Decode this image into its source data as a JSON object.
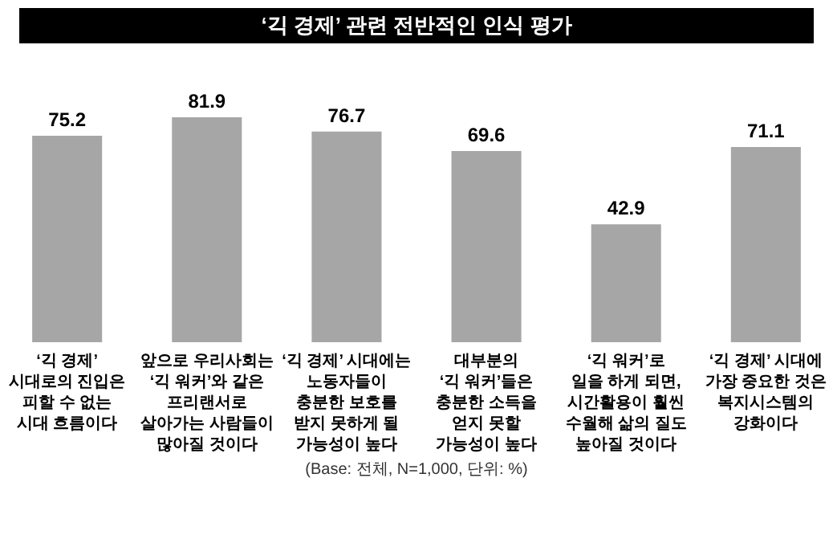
{
  "chart_data": {
    "type": "bar",
    "title": "‘긱 경제’ 관련 전반적인 인식 평가",
    "categories": [
      "‘긱 경제’\n시대로의 진입은\n피할 수 없는\n시대 흐름이다",
      "앞으로 우리사회는\n‘긱 워커’와 같은\n프리랜서로\n살아가는 사람들이\n많아질 것이다",
      "‘긱 경제’ 시대에는\n노동자들이\n충분한 보호를\n받지 못하게 될\n가능성이 높다",
      "대부분의\n‘긱 워커’들은\n충분한 소득을\n얻지 못할\n가능성이 높다",
      "‘긱 워커’로\n일을 하게 되면,\n시간활용이 훨씬\n수월해 삶의 질도\n높아질 것이다",
      "‘긱 경제’ 시대에\n가장 중요한 것은\n복지시스템의\n강화이다"
    ],
    "values": [
      75.2,
      81.9,
      76.7,
      69.6,
      42.9,
      71.1
    ],
    "color": "#a6a6a6",
    "data_labels": true,
    "grid": false,
    "annotations": [
      "(Base: 전체, N=1,000, 단위: %)"
    ]
  }
}
